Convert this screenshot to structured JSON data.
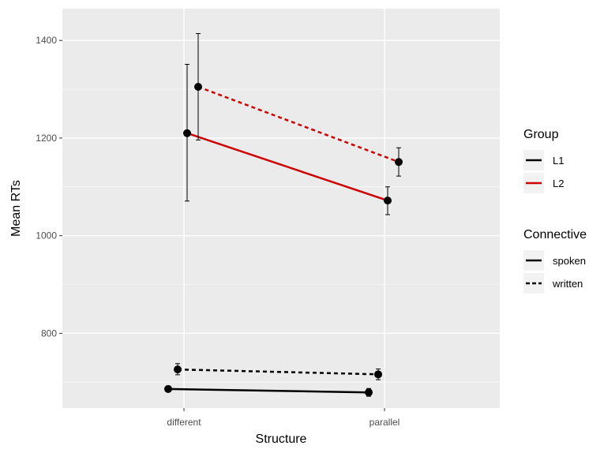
{
  "chart_data": {
    "type": "line",
    "title": "",
    "xlabel": "Structure",
    "ylabel": "Mean RTs",
    "categories": [
      "different",
      "parallel"
    ],
    "ylim": [
      647,
      1465
    ],
    "yticks": [
      800,
      1000,
      1200,
      1400
    ],
    "grid": true,
    "legend_position": "right",
    "legends": [
      {
        "title": "Group",
        "entries": [
          {
            "label": "L1",
            "color": "#000000",
            "linetype": "solid"
          },
          {
            "label": "L2",
            "color": "#cc0000",
            "linetype": "solid"
          }
        ]
      },
      {
        "title": "Connective",
        "entries": [
          {
            "label": "spoken",
            "color": "#000000",
            "linetype": "solid"
          },
          {
            "label": "written",
            "color": "#000000",
            "linetype": "dashed"
          }
        ]
      }
    ],
    "series": [
      {
        "group": "L1",
        "connective": "spoken",
        "color": "#000000",
        "linetype": "solid",
        "values": [
          686,
          679
        ],
        "error_low": [
          680,
          671
        ],
        "error_high": [
          692,
          687
        ]
      },
      {
        "group": "L1",
        "connective": "written",
        "color": "#000000",
        "linetype": "dashed",
        "values": [
          726,
          716
        ],
        "error_low": [
          715,
          705
        ],
        "error_high": [
          738,
          727
        ]
      },
      {
        "group": "L2",
        "connective": "spoken",
        "color": "#cc0000",
        "linetype": "solid",
        "values": [
          1210,
          1072
        ],
        "error_low": [
          1071,
          1043
        ],
        "error_high": [
          1351,
          1100
        ]
      },
      {
        "group": "L2",
        "connective": "written",
        "color": "#cc0000",
        "linetype": "dashed",
        "values": [
          1305,
          1151
        ],
        "error_low": [
          1196,
          1122
        ],
        "error_high": [
          1414,
          1180
        ]
      }
    ]
  }
}
